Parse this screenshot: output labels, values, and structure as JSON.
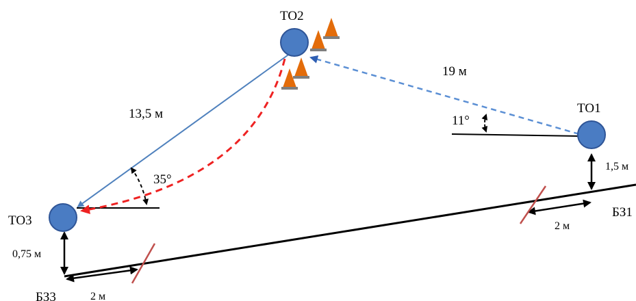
{
  "points": {
    "to1": "ТО1",
    "to2": "ТО2",
    "to3": "ТО3"
  },
  "zones": {
    "bz1": "БЗ1",
    "bz3": "БЗ3"
  },
  "distances": {
    "to2_to1": "19 м",
    "to2_to3": "13,5 м",
    "to1_offset": "1,5 м",
    "to3_offset": "0,75 м",
    "bz1_width": "2 м",
    "bz3_width": "2 м"
  },
  "angles": {
    "to1": "11°",
    "to3": "35°"
  },
  "colors": {
    "node": "#4a7cc3",
    "node_stroke": "#2f5597",
    "solid_path": "#4f81bd",
    "dashed_blue": "#5b8fd4",
    "dashed_red": "#ee2222",
    "boundary": "#000000",
    "marker": "#c0504d",
    "cone": "#e36c0a"
  },
  "icons": [
    "cone-icon",
    "cone-icon",
    "cone-icon",
    "cone-icon"
  ]
}
